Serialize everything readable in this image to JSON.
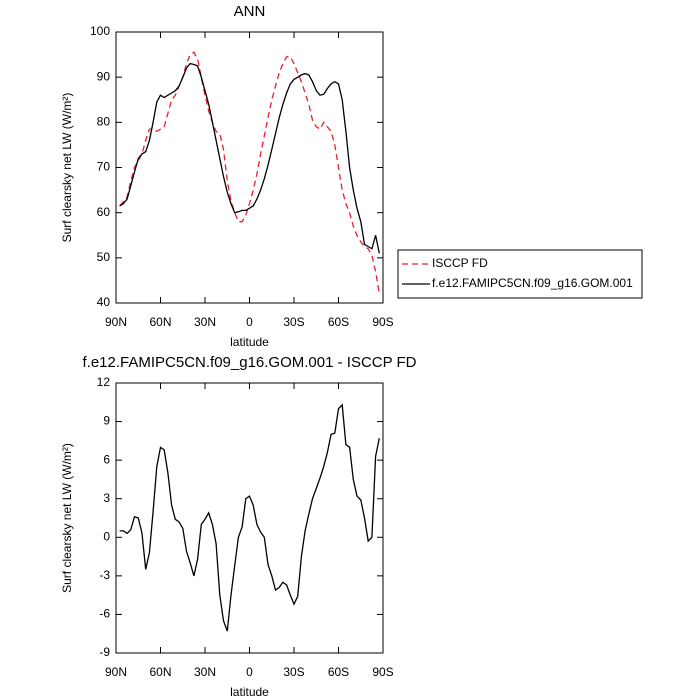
{
  "chart_data": [
    {
      "type": "line",
      "title": "ANN",
      "x_label": "latitude",
      "y_label": "Surf clearsky net LW (W/m²)",
      "x": [
        87.5,
        85,
        82.5,
        80,
        77.5,
        75,
        72.5,
        70,
        67.5,
        65,
        62.5,
        60,
        57.5,
        55,
        52.5,
        50,
        47.5,
        45,
        42.5,
        40,
        37.5,
        35,
        32.5,
        30,
        27.5,
        25,
        22.5,
        20,
        17.5,
        15,
        12.5,
        10,
        7.5,
        5,
        2.5,
        0,
        -2.5,
        -5,
        -7.5,
        -10,
        -12.5,
        -15,
        -17.5,
        -20,
        -22.5,
        -25,
        -27.5,
        -30,
        -32.5,
        -35,
        -37.5,
        -40,
        -42.5,
        -45,
        -47.5,
        -50,
        -52.5,
        -55,
        -57.5,
        -60,
        -62.5,
        -65,
        -67.5,
        -70,
        -72.5,
        -75,
        -77.5,
        -80,
        -82.5,
        -85,
        -87.5
      ],
      "xlim": [
        90,
        -90
      ],
      "xticks": [
        {
          "value": 90,
          "label": "90N"
        },
        {
          "value": 60,
          "label": "60N"
        },
        {
          "value": 30,
          "label": "30N"
        },
        0,
        {
          "value": -30,
          "label": "30S"
        },
        {
          "value": -60,
          "label": "60S"
        },
        {
          "value": -90,
          "label": "90S"
        }
      ],
      "ylim": [
        40,
        100
      ],
      "yticks": [
        40,
        50,
        60,
        70,
        80,
        90,
        100
      ],
      "legend": "right",
      "series": [
        {
          "name": "ISCCP FD",
          "color": "#e8202a",
          "dashed": true,
          "values": [
            61.5,
            62.5,
            63.5,
            67,
            70,
            71.5,
            73,
            76,
            78.5,
            78.5,
            78,
            78.5,
            79,
            82,
            85,
            86,
            88,
            90,
            93,
            95,
            95.5,
            94,
            90,
            86,
            82.5,
            80,
            78,
            77.5,
            74,
            67,
            62.5,
            60,
            58,
            58,
            59.5,
            62,
            65,
            68.5,
            73,
            77,
            81,
            85,
            88,
            91,
            93,
            94.5,
            94.5,
            93,
            91,
            89,
            86.5,
            84,
            80.5,
            79,
            78.5,
            80,
            79,
            78,
            75,
            70,
            65,
            62,
            60,
            57,
            55,
            53.5,
            52.5,
            52,
            50.5,
            47,
            42
          ]
        },
        {
          "name": "f.e12.FAMIPC5CN.f09_g16.GOM.001",
          "color": "#000000",
          "dashed": false,
          "values": [
            61.5,
            62,
            63,
            66,
            69,
            72,
            73,
            73.5,
            76,
            80,
            84.5,
            86,
            85.5,
            86,
            86.5,
            87,
            88,
            90,
            92,
            93,
            92.8,
            92.5,
            90,
            87,
            84,
            80,
            76,
            72,
            68,
            64.5,
            62,
            60,
            60.2,
            60.5,
            60.5,
            61,
            61.5,
            63,
            65,
            67.5,
            70.5,
            74,
            77.5,
            81,
            84,
            86.5,
            88.5,
            89.5,
            90,
            90.5,
            90.8,
            90.5,
            89,
            87,
            86,
            86.2,
            87.5,
            88.5,
            89,
            88.5,
            85,
            78,
            70,
            65,
            61,
            58,
            53,
            52.5,
            52,
            55,
            51
          ]
        }
      ]
    },
    {
      "type": "line",
      "title": "f.e12.FAMIPC5CN.f09_g16.GOM.001 - ISCCP FD",
      "x_label": "latitude",
      "y_label": "Surf clearsky net LW (W/m²)",
      "x": [
        87.5,
        85,
        82.5,
        80,
        77.5,
        75,
        72.5,
        70,
        67.5,
        65,
        62.5,
        60,
        57.5,
        55,
        52.5,
        50,
        47.5,
        45,
        42.5,
        40,
        37.5,
        35,
        32.5,
        30,
        27.5,
        25,
        22.5,
        20,
        17.5,
        15,
        12.5,
        10,
        7.5,
        5,
        2.5,
        0,
        -2.5,
        -5,
        -7.5,
        -10,
        -12.5,
        -15,
        -17.5,
        -20,
        -22.5,
        -25,
        -27.5,
        -30,
        -32.5,
        -35,
        -37.5,
        -40,
        -42.5,
        -45,
        -47.5,
        -50,
        -52.5,
        -55,
        -57.5,
        -60,
        -62.5,
        -65,
        -67.5,
        -70,
        -72.5,
        -75,
        -77.5,
        -80,
        -82.5,
        -85,
        -87.5
      ],
      "xlim": [
        90,
        -90
      ],
      "xticks": [
        {
          "value": 90,
          "label": "90N"
        },
        {
          "value": 60,
          "label": "60N"
        },
        {
          "value": 30,
          "label": "30N"
        },
        0,
        {
          "value": -30,
          "label": "30S"
        },
        {
          "value": -60,
          "label": "60S"
        },
        {
          "value": -90,
          "label": "90S"
        }
      ],
      "ylim": [
        -9,
        12
      ],
      "yticks": [
        -9,
        -6,
        -3,
        0,
        3,
        6,
        9,
        12
      ],
      "series": [
        {
          "color": "#000000",
          "dashed": false,
          "values": [
            0.5,
            0.5,
            0.3,
            0.6,
            1.6,
            1.5,
            0.3,
            -2.5,
            -1.2,
            2,
            5.5,
            7,
            6.8,
            5,
            2.5,
            1.4,
            1.2,
            0.7,
            -1.1,
            -2,
            -3,
            -1.7,
            1,
            1.4,
            1.9,
            1,
            -0.5,
            -4.5,
            -6.5,
            -7.3,
            -4.5,
            -2.2,
            0,
            0.8,
            3,
            3.2,
            2.5,
            1,
            0.4,
            0,
            -2.1,
            -3,
            -4.1,
            -3.9,
            -3.5,
            -3.7,
            -4.5,
            -5.2,
            -4.6,
            -1.5,
            0.5,
            1.8,
            3,
            3.8,
            4.6,
            5.5,
            6.6,
            8,
            8.1,
            10,
            10.3,
            7.2,
            7,
            4.5,
            3.2,
            2.9,
            1.5,
            -0.3,
            0,
            6.3,
            7.7
          ]
        }
      ]
    }
  ]
}
